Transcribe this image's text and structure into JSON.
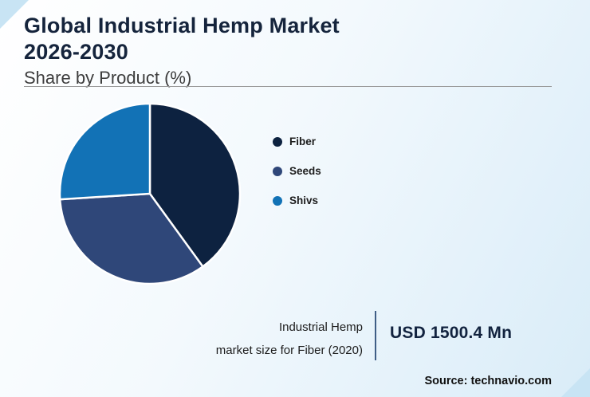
{
  "page": {
    "title_line1": "Global Industrial Hemp Market",
    "title_line2": "2026-2030",
    "subtitle": "Share by Product (%)"
  },
  "chart_data": {
    "type": "pie",
    "title": "Global Industrial Hemp Market 2026-2030",
    "subtitle": "Share by Product (%)",
    "legend_position": "right",
    "start_angle_deg": 0,
    "direction": "clockwise",
    "note": "Slice percentages are not labeled in the figure; values estimated from arc angles",
    "series": [
      {
        "name": "Fiber",
        "value": 40,
        "color": "#0d2240"
      },
      {
        "name": "Seeds",
        "value": 34,
        "color": "#2f4779"
      },
      {
        "name": "Shivs",
        "value": 26,
        "color": "#1272b6"
      }
    ]
  },
  "footer": {
    "stat_label_line1": "Industrial Hemp",
    "stat_label_line2": "market size for Fiber (2020)",
    "stat_value": "USD 1500.4 Mn",
    "source": "Source: technavio.com"
  },
  "colors": {
    "title_navy": "#15243c",
    "card_background_outer": "#c8e4f4",
    "divider_navy": "#3f5e86"
  }
}
